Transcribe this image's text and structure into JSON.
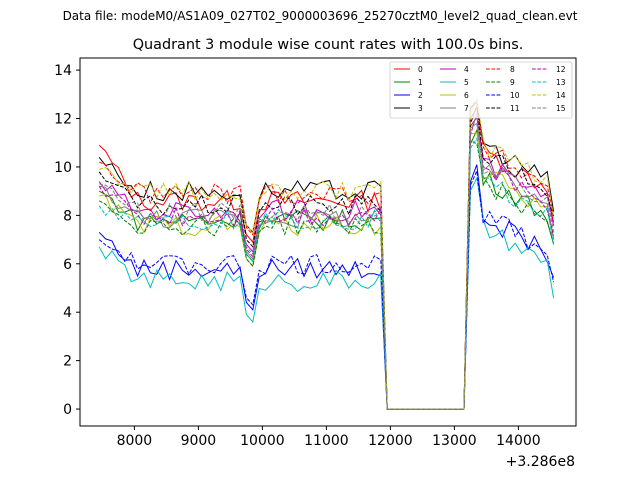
{
  "suptitle": "Data file: modeM0/AS1A09_027T02_9000003696_25270cztM0_level2_quad_clean.evt",
  "chart_data": {
    "type": "line",
    "title": "Quadrant 3 module wise count rates with 100.0s bins.",
    "xlabel": "",
    "ylabel": "",
    "offset_label": "+3.286e8",
    "xlim": [
      7150,
      14900
    ],
    "ylim": [
      -0.7,
      14.5
    ],
    "xticks": [
      8000,
      9000,
      10000,
      11000,
      12000,
      13000,
      14000
    ],
    "yticks": [
      0,
      2,
      4,
      6,
      8,
      10,
      12,
      14
    ],
    "xtick_labels": [
      "8000",
      "9000",
      "10000",
      "11000",
      "12000",
      "13000",
      "14000"
    ],
    "ytick_labels": [
      "0",
      "2",
      "4",
      "6",
      "8",
      "10",
      "12",
      "14"
    ],
    "legend_location": "top-right",
    "x_segment1_range": [
      7450,
      11850
    ],
    "x_segment2_range": [
      13150,
      14550
    ],
    "x_step": 100,
    "gap": {
      "x_start": 11950,
      "x_end": 13050,
      "value": 0
    },
    "series": [
      {
        "name": "0",
        "color": "#ff0000",
        "dash": "solid",
        "level1": 8.6,
        "level2": 10.5,
        "start": 10.9
      },
      {
        "name": "1",
        "color": "#008000",
        "dash": "solid",
        "level1": 7.8,
        "level2": 9.4,
        "start": 9.0
      },
      {
        "name": "2",
        "color": "#0000ff",
        "dash": "solid",
        "level1": 5.8,
        "level2": 7.8,
        "start": 7.3
      },
      {
        "name": "3",
        "color": "#000000",
        "dash": "solid",
        "level1": 9.0,
        "level2": 10.8,
        "start": 10.4
      },
      {
        "name": "4",
        "color": "#bf00bf",
        "dash": "solid",
        "level1": 8.2,
        "level2": 10.0,
        "start": 9.4
      },
      {
        "name": "5",
        "color": "#00bfbf",
        "dash": "solid",
        "level1": 5.3,
        "level2": 7.3,
        "start": 6.7
      },
      {
        "name": "6",
        "color": "#bfbf00",
        "dash": "solid",
        "level1": 7.6,
        "level2": 9.6,
        "start": 8.8
      },
      {
        "name": "7",
        "color": "#808080",
        "dash": "solid",
        "level1": 7.9,
        "level2": 9.8,
        "start": 9.2
      },
      {
        "name": "8",
        "color": "#ff0000",
        "dash": "dashed",
        "level1": 8.9,
        "level2": 10.6,
        "start": 10.2
      },
      {
        "name": "9",
        "color": "#008000",
        "dash": "dashed",
        "level1": 7.6,
        "level2": 9.2,
        "start": 8.6
      },
      {
        "name": "10",
        "color": "#0000ff",
        "dash": "dashed",
        "level1": 6.0,
        "level2": 7.9,
        "start": 7.0
      },
      {
        "name": "11",
        "color": "#000000",
        "dash": "dashed",
        "level1": 8.4,
        "level2": 10.4,
        "start": 9.8
      },
      {
        "name": "12",
        "color": "#bf00bf",
        "dash": "dashed",
        "level1": 8.0,
        "level2": 9.9,
        "start": 9.2
      },
      {
        "name": "13",
        "color": "#00bfbf",
        "dash": "dashed",
        "level1": 7.8,
        "level2": 9.3,
        "start": 8.4
      },
      {
        "name": "14",
        "color": "#bfbf00",
        "dash": "dashed",
        "level1": 9.0,
        "level2": 10.7,
        "start": 9.9
      },
      {
        "name": "15",
        "color": "#808080",
        "dash": "dashed",
        "level1": 8.1,
        "level2": 9.9,
        "start": 9.3
      }
    ]
  }
}
